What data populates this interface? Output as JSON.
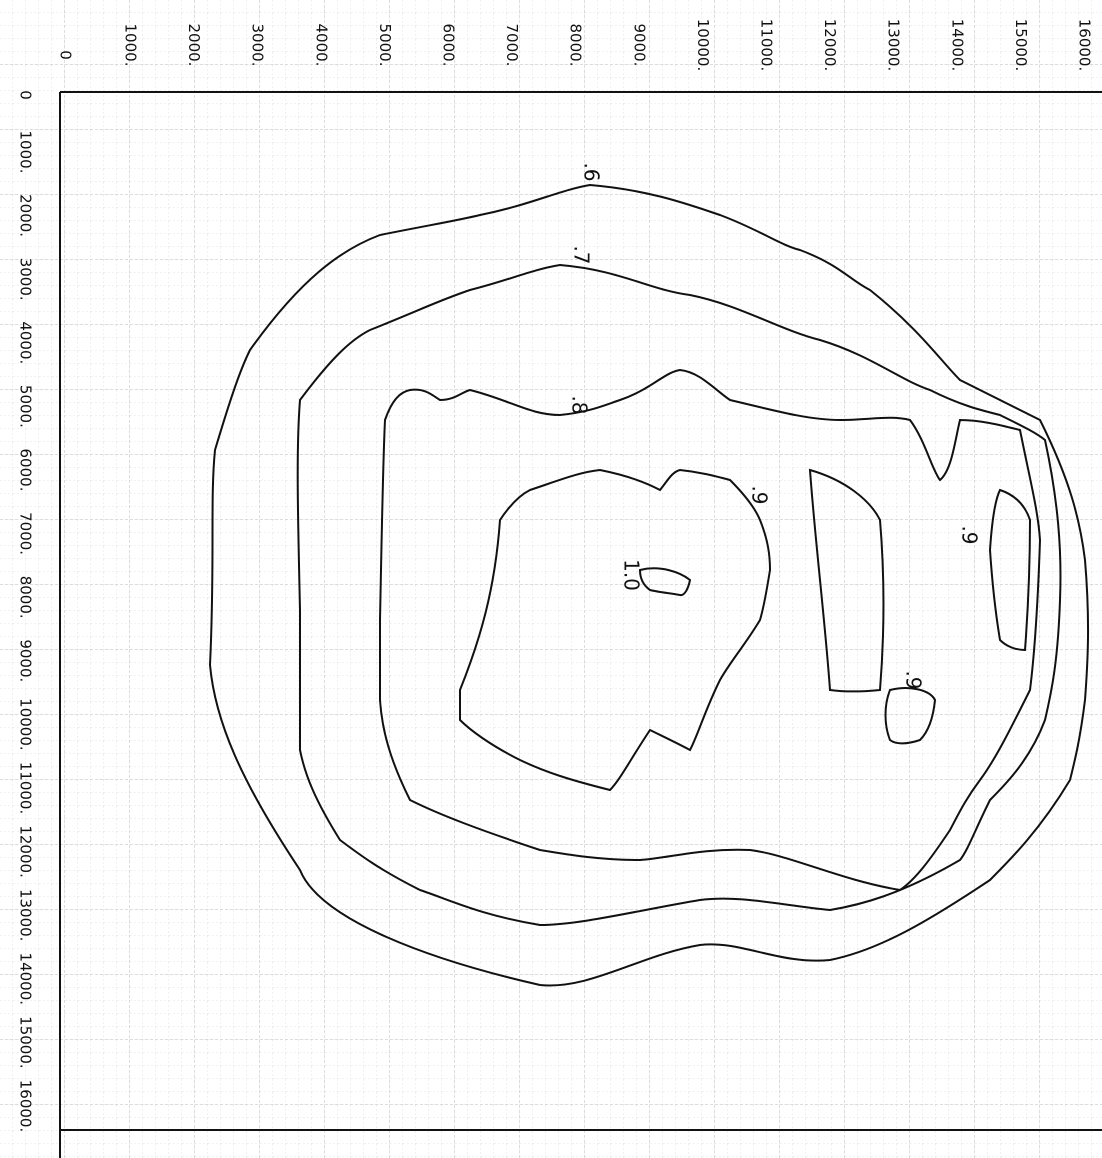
{
  "top_axis": {
    "origin": "0",
    "labels": [
      "1000.",
      "2000.",
      "3000.",
      "4000.",
      "5000.",
      "6000.",
      "7000.",
      "8000.",
      "9000.",
      "10000.",
      "11000.",
      "12000.",
      "13000.",
      "14000.",
      "15000.",
      "16000."
    ]
  },
  "left_axis": {
    "origin": "0",
    "labels": [
      "1000.",
      "2000.",
      "3000.",
      "4000.",
      "5000.",
      "6000.",
      "7000.",
      "8000.",
      "9000.",
      "10000.",
      "11000.",
      "12000.",
      "13000.",
      "14000.",
      "15000.",
      "16000."
    ]
  },
  "contour_labels": [
    ".6",
    ".7",
    ".8",
    ".9",
    "1.0",
    ".9",
    ".9"
  ]
}
